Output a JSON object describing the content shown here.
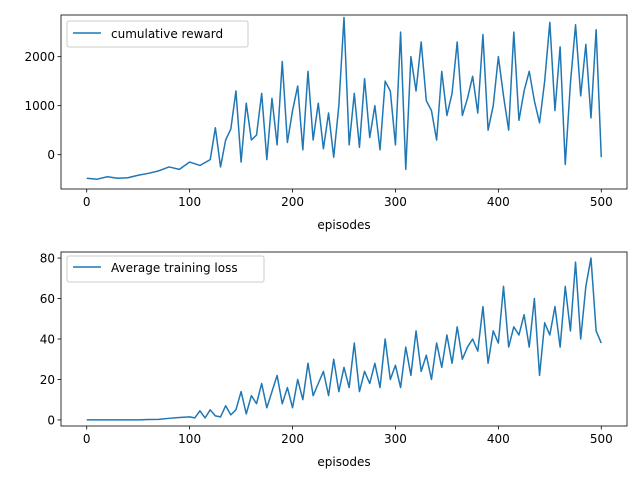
{
  "chart_data": [
    {
      "type": "line",
      "title": "",
      "xlabel": "episodes",
      "ylabel": "",
      "xlim": [
        -25,
        525
      ],
      "ylim": [
        -700,
        2850
      ],
      "xticks": [
        0,
        100,
        200,
        300,
        400,
        500
      ],
      "yticks": [
        0,
        1000,
        2000
      ],
      "xtick_labels": [
        "0",
        "100",
        "200",
        "300",
        "400",
        "500"
      ],
      "ytick_labels": [
        "0",
        "1000",
        "2000"
      ],
      "grid": false,
      "legend_position": "top-left",
      "color": "#1f77b4",
      "series": [
        {
          "name": "cumulative reward",
          "x": [
            0,
            10,
            20,
            30,
            40,
            50,
            60,
            70,
            80,
            90,
            100,
            110,
            120,
            125,
            130,
            135,
            140,
            145,
            150,
            155,
            160,
            165,
            170,
            175,
            180,
            185,
            190,
            195,
            200,
            205,
            210,
            215,
            220,
            225,
            230,
            235,
            240,
            245,
            250,
            255,
            260,
            265,
            270,
            275,
            280,
            285,
            290,
            295,
            300,
            305,
            310,
            315,
            320,
            325,
            330,
            335,
            340,
            345,
            350,
            355,
            360,
            365,
            370,
            375,
            380,
            385,
            390,
            395,
            400,
            405,
            410,
            415,
            420,
            425,
            430,
            435,
            440,
            445,
            450,
            455,
            460,
            465,
            470,
            475,
            480,
            485,
            490,
            495,
            500
          ],
          "values": [
            -480,
            -500,
            -450,
            -480,
            -470,
            -420,
            -380,
            -330,
            -250,
            -300,
            -150,
            -220,
            -100,
            550,
            -250,
            300,
            520,
            1300,
            -150,
            1050,
            300,
            400,
            1250,
            -100,
            1150,
            200,
            1900,
            250,
            900,
            1400,
            100,
            1700,
            300,
            1050,
            120,
            850,
            -50,
            1000,
            2800,
            200,
            1250,
            150,
            1550,
            350,
            1000,
            100,
            1500,
            1300,
            200,
            2500,
            -300,
            2000,
            1300,
            2300,
            1100,
            900,
            300,
            1700,
            800,
            1250,
            2300,
            800,
            1150,
            1600,
            850,
            2450,
            500,
            1000,
            2000,
            1200,
            500,
            2500,
            700,
            1300,
            1700,
            1100,
            650,
            1500,
            2700,
            900,
            2200,
            -200,
            1450,
            2650,
            1200,
            2250,
            750,
            2550,
            -50
          ]
        }
      ]
    },
    {
      "type": "line",
      "title": "",
      "xlabel": "episodes",
      "ylabel": "",
      "xlim": [
        -25,
        525
      ],
      "ylim": [
        -3,
        83
      ],
      "xticks": [
        0,
        100,
        200,
        300,
        400,
        500
      ],
      "yticks": [
        0,
        20,
        40,
        60,
        80
      ],
      "xtick_labels": [
        "0",
        "100",
        "200",
        "300",
        "400",
        "500"
      ],
      "ytick_labels": [
        "0",
        "20",
        "40",
        "60",
        "80"
      ],
      "grid": false,
      "legend_position": "top-left",
      "color": "#1f77b4",
      "series": [
        {
          "name": "Average training loss",
          "x": [
            0,
            10,
            20,
            30,
            40,
            50,
            60,
            70,
            80,
            90,
            100,
            105,
            110,
            115,
            120,
            125,
            130,
            135,
            140,
            145,
            150,
            155,
            160,
            165,
            170,
            175,
            180,
            185,
            190,
            195,
            200,
            205,
            210,
            215,
            220,
            225,
            230,
            235,
            240,
            245,
            250,
            255,
            260,
            265,
            270,
            275,
            280,
            285,
            290,
            295,
            300,
            305,
            310,
            315,
            320,
            325,
            330,
            335,
            340,
            345,
            350,
            355,
            360,
            365,
            370,
            375,
            380,
            385,
            390,
            395,
            400,
            405,
            410,
            415,
            420,
            425,
            430,
            435,
            440,
            445,
            450,
            455,
            460,
            465,
            470,
            475,
            480,
            485,
            490,
            495,
            500
          ],
          "values": [
            0,
            0,
            0,
            0,
            0,
            0,
            0.2,
            0.3,
            0.8,
            1.2,
            1.5,
            1.0,
            4.5,
            1.0,
            5.0,
            2.0,
            1.5,
            7.0,
            2.5,
            5.0,
            14.0,
            3.0,
            12.0,
            8.0,
            18.0,
            6.0,
            14.0,
            22.0,
            8.0,
            16.0,
            6.0,
            20.0,
            10.0,
            28.0,
            12.0,
            18.0,
            24.0,
            12.0,
            30.0,
            14.0,
            26.0,
            16.0,
            38.0,
            14.0,
            24.0,
            18.0,
            28.0,
            16.0,
            40.0,
            20.0,
            27.0,
            16.0,
            36.0,
            22.0,
            44.0,
            24.0,
            32.0,
            20.0,
            38.0,
            26.0,
            42.0,
            28.0,
            46.0,
            30.0,
            36.0,
            40.0,
            34.0,
            56.0,
            28.0,
            44.0,
            38.0,
            66.0,
            36.0,
            46.0,
            42.0,
            52.0,
            36.0,
            60.0,
            22.0,
            48.0,
            42.0,
            56.0,
            36.0,
            66.0,
            44.0,
            78.0,
            40.0,
            66.0,
            80.0,
            44.0,
            38.0
          ]
        }
      ]
    }
  ]
}
